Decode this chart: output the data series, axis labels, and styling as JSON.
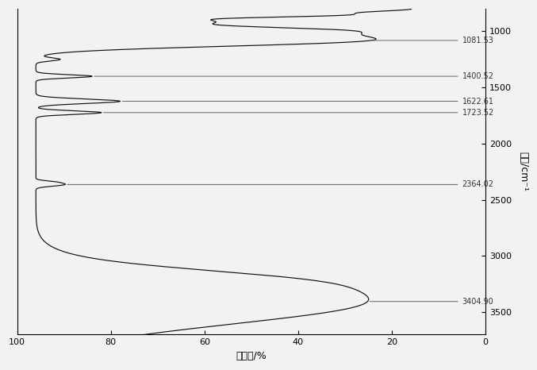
{
  "xlabel": "波数/cm⁻¹",
  "ylabel": "透射率/%",
  "wn_min": 800,
  "wn_max": 4000,
  "T_min": 0,
  "T_max": 100,
  "xticks_wn": [
    1000,
    1500,
    2000,
    2500,
    3000,
    3500
  ],
  "yticks_T": [
    0,
    20,
    40,
    60,
    80,
    100
  ],
  "peaks": [
    {
      "wn": 1081.53,
      "label": "1081.53"
    },
    {
      "wn": 1400.52,
      "label": "1400.52"
    },
    {
      "wn": 1622.61,
      "label": "1622.61"
    },
    {
      "wn": 1723.52,
      "label": "1723.52"
    },
    {
      "wn": 2364.02,
      "label": "2364.02"
    },
    {
      "wn": 3404.9,
      "label": "3404.90"
    }
  ],
  "line_color": "#111111",
  "bg_color": "#f2f2f2",
  "dpi": 100
}
